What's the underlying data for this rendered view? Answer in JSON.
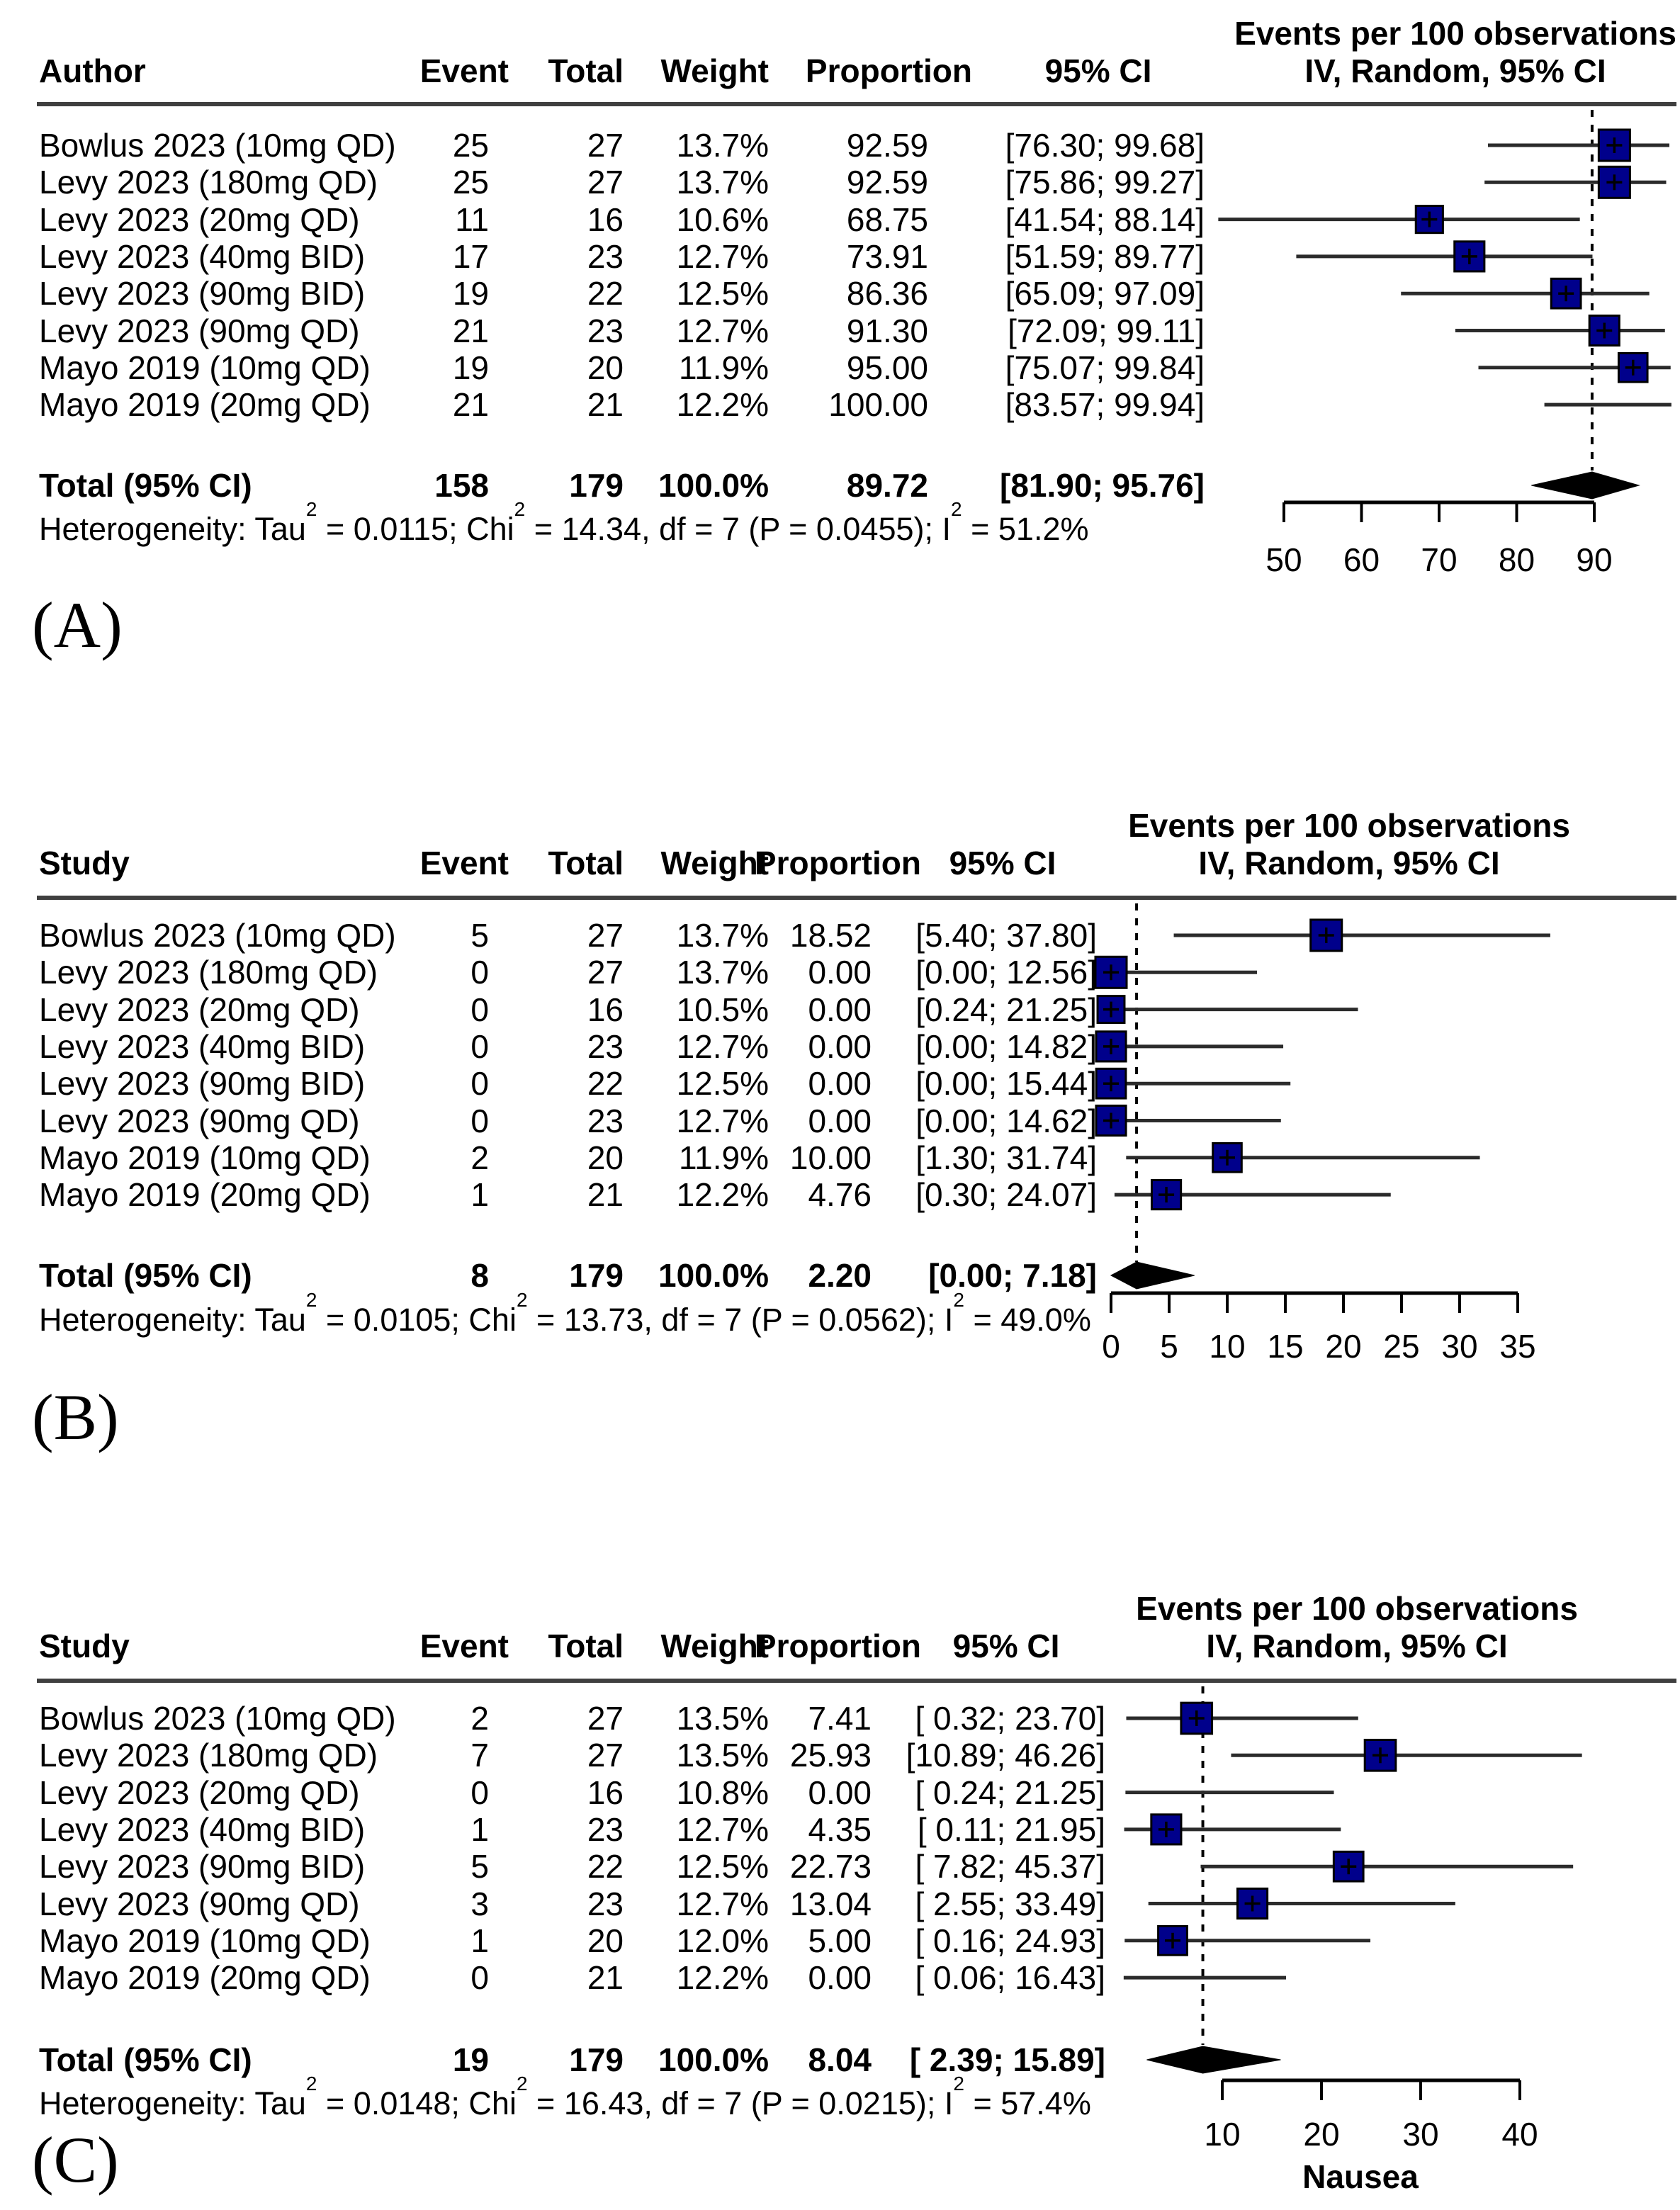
{
  "figure_type": "meta-analysis forest plots",
  "square_color": "#00008B",
  "chart_data": [
    {
      "type": "forest",
      "panel_label": "(A)",
      "title": "Events per 100 observations",
      "subtitle": "IV, Random, 95% CI",
      "study_col_header": "Author",
      "columns": [
        "Event",
        "Total",
        "Weight",
        "Proportion",
        "95% CI"
      ],
      "axis": {
        "ticks": [
          50,
          60,
          70,
          80,
          90
        ],
        "tick_labels": [
          "50",
          "60",
          "70",
          "80",
          "90"
        ],
        "xlabel": ""
      },
      "pooled_value": 89.72,
      "rows": [
        {
          "study": "Bowlus 2023 (10mg QD)",
          "event": "25",
          "total": "27",
          "weight": "13.7%",
          "weight_pct": 13.7,
          "proportion": "92.59",
          "prop_value": 92.59,
          "ci": "[76.30; 99.68]",
          "ci_low": 76.3,
          "ci_high": 99.68,
          "square": true
        },
        {
          "study": "Levy 2023 (180mg QD)",
          "event": "25",
          "total": "27",
          "weight": "13.7%",
          "weight_pct": 13.7,
          "proportion": "92.59",
          "prop_value": 92.59,
          "ci": "[75.86; 99.27]",
          "ci_low": 75.86,
          "ci_high": 99.27,
          "square": true
        },
        {
          "study": "Levy 2023 (20mg QD)",
          "event": "11",
          "total": "16",
          "weight": "10.6%",
          "weight_pct": 10.6,
          "proportion": "68.75",
          "prop_value": 68.75,
          "ci": "[41.54; 88.14]",
          "ci_low": 41.54,
          "ci_high": 88.14,
          "square": true
        },
        {
          "study": "Levy 2023 (40mg BID)",
          "event": "17",
          "total": "23",
          "weight": "12.7%",
          "weight_pct": 12.7,
          "proportion": "73.91",
          "prop_value": 73.91,
          "ci": "[51.59; 89.77]",
          "ci_low": 51.59,
          "ci_high": 89.77,
          "square": true
        },
        {
          "study": "Levy 2023 (90mg BID)",
          "event": "19",
          "total": "22",
          "weight": "12.5%",
          "weight_pct": 12.5,
          "proportion": "86.36",
          "prop_value": 86.36,
          "ci": "[65.09; 97.09]",
          "ci_low": 65.09,
          "ci_high": 97.09,
          "square": true
        },
        {
          "study": "Levy 2023 (90mg QD)",
          "event": "21",
          "total": "23",
          "weight": "12.7%",
          "weight_pct": 12.7,
          "proportion": "91.30",
          "prop_value": 91.3,
          "ci": "[72.09; 99.11]",
          "ci_low": 72.09,
          "ci_high": 99.11,
          "square": true
        },
        {
          "study": "Mayo 2019 (10mg QD)",
          "event": "19",
          "total": "20",
          "weight": "11.9%",
          "weight_pct": 11.9,
          "proportion": "95.00",
          "prop_value": 95.0,
          "ci": "[75.07; 99.84]",
          "ci_low": 75.07,
          "ci_high": 99.84,
          "square": true
        },
        {
          "study": "Mayo 2019 (20mg QD)",
          "event": "21",
          "total": "21",
          "weight": "12.2%",
          "weight_pct": 12.2,
          "proportion": "100.00",
          "prop_value": 100.0,
          "ci": "[83.57; 99.94]",
          "ci_low": 83.57,
          "ci_high": 99.94,
          "square": false
        }
      ],
      "total": {
        "label": "Total (95% CI)",
        "event": "158",
        "total": "179",
        "weight": "100.0%",
        "proportion": "89.72",
        "ci": "[81.90; 95.76]",
        "value": 89.72,
        "ci_low": 81.9,
        "ci_high": 95.76
      },
      "heterogeneity_segments": [
        {
          "t": "Heterogeneity: Tau"
        },
        {
          "t": "2",
          "sup": true
        },
        {
          "t": " = 0.0115; Chi"
        },
        {
          "t": "2",
          "sup": true
        },
        {
          "t": " = 14.34, df = 7 (P = 0.0455); I"
        },
        {
          "t": "2",
          "sup": true
        },
        {
          "t": " = 51.2%"
        }
      ]
    },
    {
      "type": "forest",
      "panel_label": "(B)",
      "title": "Events per 100 observations",
      "subtitle": "IV, Random, 95% CI",
      "study_col_header": "Study",
      "columns": [
        "Event",
        "Total",
        "Weight",
        "Proportion",
        "95% CI"
      ],
      "axis": {
        "ticks": [
          0,
          5,
          10,
          15,
          20,
          25,
          30,
          35
        ],
        "tick_labels": [
          "0",
          "5",
          "10",
          "15",
          "20",
          "25",
          "30",
          "35"
        ],
        "xlabel": ""
      },
      "pooled_value": 2.2,
      "rows": [
        {
          "study": "Bowlus 2023 (10mg QD)",
          "event": "5",
          "total": "27",
          "weight": "13.7%",
          "weight_pct": 13.7,
          "proportion": "18.52",
          "prop_value": 18.52,
          "ci": "[5.40; 37.80]",
          "ci_low": 5.4,
          "ci_high": 37.8,
          "square": true
        },
        {
          "study": "Levy 2023 (180mg QD)",
          "event": "0",
          "total": "27",
          "weight": "13.7%",
          "weight_pct": 13.7,
          "proportion": "0.00",
          "prop_value": 0.0,
          "ci": "[0.00; 12.56]",
          "ci_low": 0.0,
          "ci_high": 12.56,
          "square": true
        },
        {
          "study": "Levy 2023 (20mg QD)",
          "event": "0",
          "total": "16",
          "weight": "10.5%",
          "weight_pct": 10.5,
          "proportion": "0.00",
          "prop_value": 0.0,
          "ci": "[0.24; 21.25]",
          "ci_low": 0.24,
          "ci_high": 21.25,
          "square": true
        },
        {
          "study": "Levy 2023 (40mg BID)",
          "event": "0",
          "total": "23",
          "weight": "12.7%",
          "weight_pct": 12.7,
          "proportion": "0.00",
          "prop_value": 0.0,
          "ci": "[0.00; 14.82]",
          "ci_low": 0.0,
          "ci_high": 14.82,
          "square": true
        },
        {
          "study": "Levy 2023 (90mg BID)",
          "event": "0",
          "total": "22",
          "weight": "12.5%",
          "weight_pct": 12.5,
          "proportion": "0.00",
          "prop_value": 0.0,
          "ci": "[0.00; 15.44]",
          "ci_low": 0.0,
          "ci_high": 15.44,
          "square": true
        },
        {
          "study": "Levy 2023 (90mg QD)",
          "event": "0",
          "total": "23",
          "weight": "12.7%",
          "weight_pct": 12.7,
          "proportion": "0.00",
          "prop_value": 0.0,
          "ci": "[0.00; 14.62]",
          "ci_low": 0.0,
          "ci_high": 14.62,
          "square": true
        },
        {
          "study": "Mayo 2019 (10mg QD)",
          "event": "2",
          "total": "20",
          "weight": "11.9%",
          "weight_pct": 11.9,
          "proportion": "10.00",
          "prop_value": 10.0,
          "ci": "[1.30; 31.74]",
          "ci_low": 1.3,
          "ci_high": 31.74,
          "square": true
        },
        {
          "study": "Mayo 2019 (20mg QD)",
          "event": "1",
          "total": "21",
          "weight": "12.2%",
          "weight_pct": 12.2,
          "proportion": "4.76",
          "prop_value": 4.76,
          "ci": "[0.30; 24.07]",
          "ci_low": 0.3,
          "ci_high": 24.07,
          "square": true
        }
      ],
      "total": {
        "label": "Total (95% CI)",
        "event": "8",
        "total": "179",
        "weight": "100.0%",
        "proportion": "2.20",
        "ci": "[0.00; 7.18]",
        "value": 2.2,
        "ci_low": 0.0,
        "ci_high": 7.18
      },
      "heterogeneity_segments": [
        {
          "t": "Heterogeneity: Tau"
        },
        {
          "t": "2",
          "sup": true
        },
        {
          "t": " = 0.0105; Chi"
        },
        {
          "t": "2",
          "sup": true
        },
        {
          "t": " = 13.73, df = 7 (P = 0.0562); I"
        },
        {
          "t": "2",
          "sup": true
        },
        {
          "t": " = 49.0%"
        }
      ]
    },
    {
      "type": "forest",
      "panel_label": "(C)",
      "title": "Events per 100 observations",
      "subtitle": "IV, Random, 95% CI",
      "study_col_header": "Study",
      "columns": [
        "Event",
        "Total",
        "Weight",
        "Proportion",
        "95% CI"
      ],
      "axis": {
        "ticks": [
          10,
          20,
          30,
          40
        ],
        "tick_labels": [
          "10",
          "20",
          "30",
          "40"
        ],
        "xlabel": "Nausea"
      },
      "pooled_value": 8.04,
      "rows": [
        {
          "study": "Bowlus 2023 (10mg QD)",
          "event": "2",
          "total": "27",
          "weight": "13.5%",
          "weight_pct": 13.5,
          "proportion": "7.41",
          "prop_value": 7.41,
          "ci": "[ 0.32; 23.70]",
          "ci_low": 0.32,
          "ci_high": 23.7,
          "square": true
        },
        {
          "study": "Levy 2023 (180mg QD)",
          "event": "7",
          "total": "27",
          "weight": "13.5%",
          "weight_pct": 13.5,
          "proportion": "25.93",
          "prop_value": 25.93,
          "ci": "[10.89; 46.26]",
          "ci_low": 10.89,
          "ci_high": 46.26,
          "square": true
        },
        {
          "study": "Levy 2023 (20mg QD)",
          "event": "0",
          "total": "16",
          "weight": "10.8%",
          "weight_pct": 10.8,
          "proportion": "0.00",
          "prop_value": 0.0,
          "ci": "[ 0.24; 21.25]",
          "ci_low": 0.24,
          "ci_high": 21.25,
          "square": false
        },
        {
          "study": "Levy 2023 (40mg BID)",
          "event": "1",
          "total": "23",
          "weight": "12.7%",
          "weight_pct": 12.7,
          "proportion": "4.35",
          "prop_value": 4.35,
          "ci": "[ 0.11; 21.95]",
          "ci_low": 0.11,
          "ci_high": 21.95,
          "square": true
        },
        {
          "study": "Levy 2023 (90mg BID)",
          "event": "5",
          "total": "22",
          "weight": "12.5%",
          "weight_pct": 12.5,
          "proportion": "22.73",
          "prop_value": 22.73,
          "ci": "[ 7.82; 45.37]",
          "ci_low": 7.82,
          "ci_high": 45.37,
          "square": true
        },
        {
          "study": "Levy 2023 (90mg QD)",
          "event": "3",
          "total": "23",
          "weight": "12.7%",
          "weight_pct": 12.7,
          "proportion": "13.04",
          "prop_value": 13.04,
          "ci": "[ 2.55; 33.49]",
          "ci_low": 2.55,
          "ci_high": 33.49,
          "square": true
        },
        {
          "study": "Mayo 2019 (10mg QD)",
          "event": "1",
          "total": "20",
          "weight": "12.0%",
          "weight_pct": 12.0,
          "proportion": "5.00",
          "prop_value": 5.0,
          "ci": "[ 0.16; 24.93]",
          "ci_low": 0.16,
          "ci_high": 24.93,
          "square": true
        },
        {
          "study": "Mayo 2019 (20mg QD)",
          "event": "0",
          "total": "21",
          "weight": "12.2%",
          "weight_pct": 12.2,
          "proportion": "0.00",
          "prop_value": 0.0,
          "ci": "[ 0.06; 16.43]",
          "ci_low": 0.06,
          "ci_high": 16.43,
          "square": false
        }
      ],
      "total": {
        "label": "Total (95% CI)",
        "event": "19",
        "total": "179",
        "weight": "100.0%",
        "proportion": "8.04",
        "ci": "[ 2.39; 15.89]",
        "value": 8.04,
        "ci_low": 2.39,
        "ci_high": 15.89
      },
      "heterogeneity_segments": [
        {
          "t": "Heterogeneity: Tau"
        },
        {
          "t": "2",
          "sup": true
        },
        {
          "t": " = 0.0148; Chi"
        },
        {
          "t": "2",
          "sup": true
        },
        {
          "t": " = 16.43, df = 7 (P = 0.0215); I"
        },
        {
          "t": "2",
          "sup": true
        },
        {
          "t": " = 57.4%"
        }
      ]
    }
  ]
}
